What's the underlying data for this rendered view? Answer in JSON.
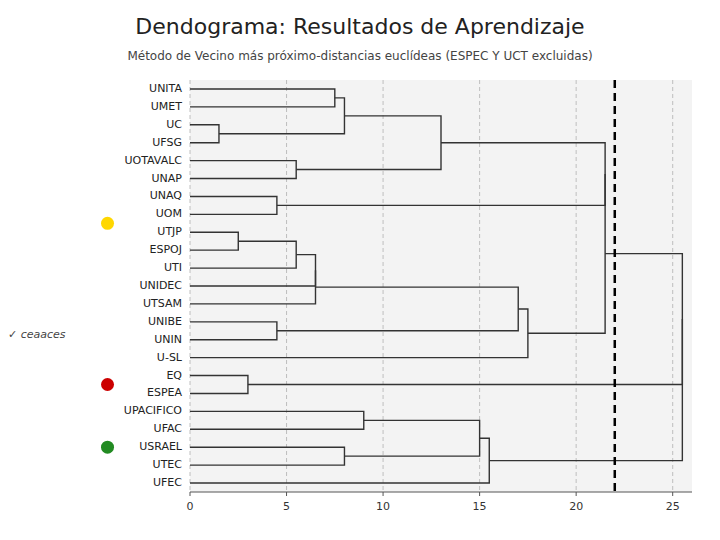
{
  "chart_data": {
    "type": "dendrogram",
    "title": "Dendograma: Resultados de Aprendizaje",
    "subtitle": "Método de Vecino más próximo-distancias euclídeas (ESPEC Y UCT excluidas)",
    "categories": [
      "UNITA",
      "UMET",
      "UC",
      "UFSG",
      "UOTAVALC",
      "UNAP",
      "UNAQ",
      "UOM",
      "UTJP",
      "ESPOJ",
      "UTI",
      "UNIDEC",
      "UTSAM",
      "UNIBE",
      "UNIN",
      "U-SL",
      "EQ",
      "ESPEA",
      "UPACIFICO",
      "UFAC",
      "USRAEL",
      "UTEC",
      "UFEC"
    ],
    "links": [
      {
        "children": [
          2,
          3
        ],
        "dist": 1.5
      },
      {
        "children": [
          8,
          9
        ],
        "dist": 2.5
      },
      {
        "children": [
          16,
          17
        ],
        "dist": 3.0
      },
      {
        "children": [
          6,
          7
        ],
        "dist": 4.5
      },
      {
        "children": [
          13,
          14
        ],
        "dist": 4.5
      },
      {
        "children": [
          4,
          5
        ],
        "dist": 5.5
      },
      {
        "children": [
          10,
          24
        ],
        "dist": 5.5
      },
      {
        "children": [
          11,
          29
        ],
        "dist": 6.5
      },
      {
        "children": [
          12,
          30
        ],
        "dist": 6.5
      },
      {
        "children": [
          0,
          1
        ],
        "dist": 7.5
      },
      {
        "children": [
          23,
          32
        ],
        "dist": 8.0
      },
      {
        "children": [
          20,
          21
        ],
        "dist": 8.0
      },
      {
        "children": [
          18,
          19
        ],
        "dist": 9.0
      },
      {
        "children": [
          28,
          33
        ],
        "dist": 13.0
      },
      {
        "children": [
          34,
          35
        ],
        "dist": 15.0
      },
      {
        "children": [
          22,
          37
        ],
        "dist": 15.5
      },
      {
        "children": [
          27,
          31
        ],
        "dist": 17.0
      },
      {
        "children": [
          15,
          39
        ],
        "dist": 17.5
      },
      {
        "children": [
          26,
          36
        ],
        "dist": 21.5
      },
      {
        "children": [
          40,
          41
        ],
        "dist": 21.5
      },
      {
        "children": [
          25,
          42
        ],
        "dist": 25.5
      },
      {
        "children": [
          38,
          43
        ],
        "dist": 25.5
      }
    ],
    "clusters": [
      {
        "leaves": [
          0,
          1,
          2,
          3,
          4,
          5,
          6,
          7,
          8,
          9,
          10,
          11,
          12,
          13,
          14,
          15
        ],
        "color": "#FFD700"
      },
      {
        "leaves": [
          16,
          17
        ],
        "color": "#CC0000"
      },
      {
        "leaves": [
          18,
          19,
          20,
          21,
          22
        ],
        "color": "#228B22"
      }
    ],
    "threshold": 22.0,
    "xlim": [
      0,
      26
    ],
    "xticks": [
      0,
      5,
      10,
      15,
      20,
      25
    ],
    "grid": true,
    "color": "#333333",
    "annotations": [
      {
        "text": "✓ ceaaces"
      }
    ]
  }
}
